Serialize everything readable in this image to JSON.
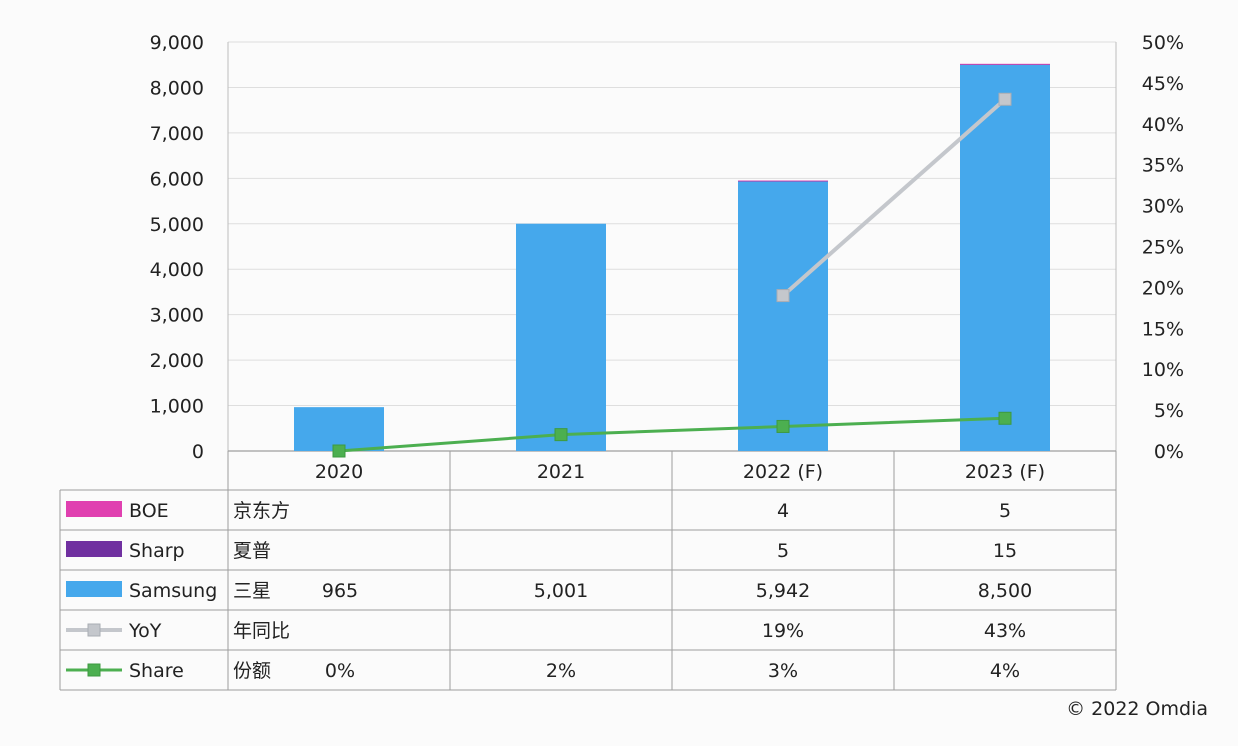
{
  "chart_data": {
    "type": "bar",
    "categories": [
      "2020",
      "2021",
      "2022 (F)",
      "2023 (F)"
    ],
    "series": [
      {
        "name": "Samsung",
        "local_name": "三星",
        "kind": "bar",
        "axis": "left",
        "color": "#45a8ec",
        "values": [
          965,
          5001,
          5942,
          8500
        ],
        "labels": [
          "965",
          "5,001",
          "5,942",
          "8,500"
        ]
      },
      {
        "name": "Sharp",
        "local_name": "夏普",
        "kind": "bar",
        "axis": "left",
        "color": "#7030a0",
        "values": [
          null,
          null,
          5,
          15
        ],
        "labels": [
          "",
          "",
          "5",
          "15"
        ]
      },
      {
        "name": "BOE",
        "local_name": "京东方",
        "kind": "bar",
        "axis": "left",
        "color": "#e040b0",
        "values": [
          null,
          null,
          4,
          5
        ],
        "labels": [
          "",
          "",
          "4",
          "5"
        ]
      },
      {
        "name": "YoY",
        "local_name": "年同比",
        "kind": "line",
        "axis": "right",
        "color": "#c4c7cc",
        "values": [
          null,
          null,
          19,
          43
        ],
        "labels": [
          "",
          "",
          "19%",
          "43%"
        ]
      },
      {
        "name": "Share",
        "local_name": "份额",
        "kind": "line",
        "axis": "right",
        "color": "#4caf50",
        "values": [
          0,
          2,
          3,
          4
        ],
        "labels": [
          "0%",
          "2%",
          "3%",
          "4%"
        ]
      }
    ],
    "table_order": [
      "BOE",
      "Sharp",
      "Samsung",
      "YoY",
      "Share"
    ],
    "stack_order": [
      "Samsung",
      "Sharp",
      "BOE"
    ],
    "ylim": [
      0,
      9000
    ],
    "y_ticks": [
      "0",
      "1,000",
      "2,000",
      "3,000",
      "4,000",
      "5,000",
      "6,000",
      "7,000",
      "8,000",
      "9,000"
    ],
    "y2lim": [
      0,
      50
    ],
    "y2_ticks": [
      "0%",
      "5%",
      "10%",
      "15%",
      "20%",
      "25%",
      "30%",
      "35%",
      "40%",
      "45%",
      "50%"
    ],
    "grid": true,
    "legend": "data-table"
  },
  "footer": "© 2022 Omdia"
}
